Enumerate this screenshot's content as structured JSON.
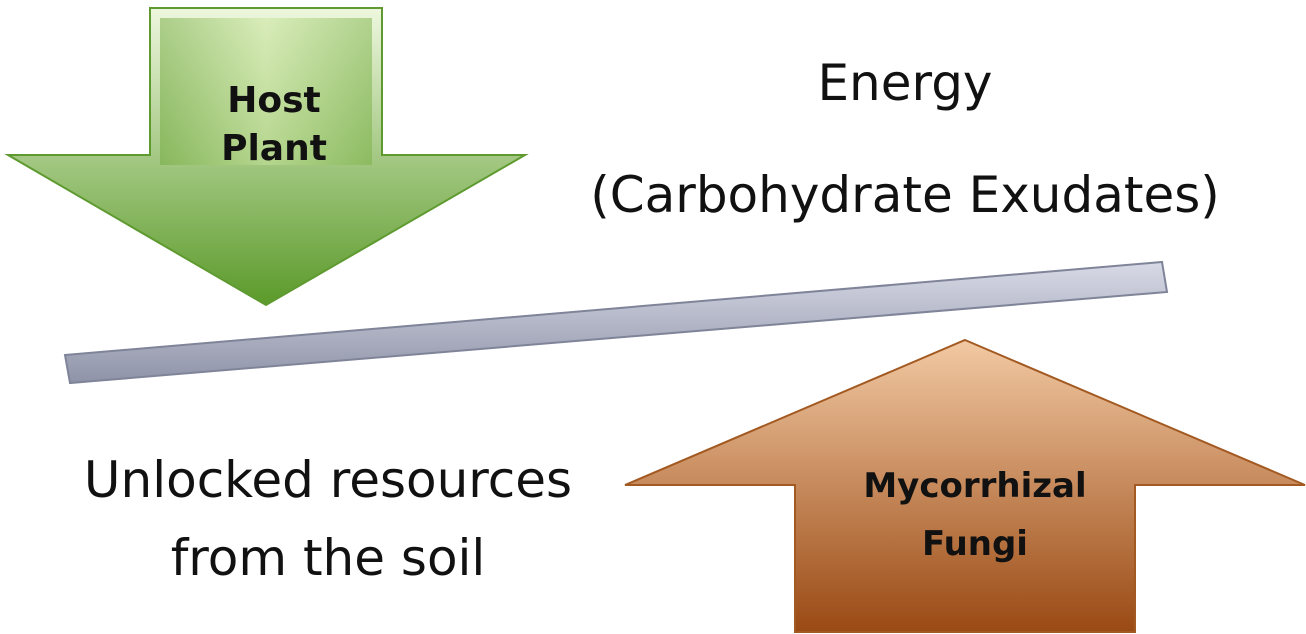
{
  "nodes": [
    {
      "label": "Host\nPlant"
    },
    {
      "label": "Mycorrhizal\nFungi"
    }
  ],
  "labels": [
    {
      "text": "Energy\n(Carbohydrate Exudates)"
    },
    {
      "text": "Unlocked resources\nfrom the soil"
    }
  ]
}
